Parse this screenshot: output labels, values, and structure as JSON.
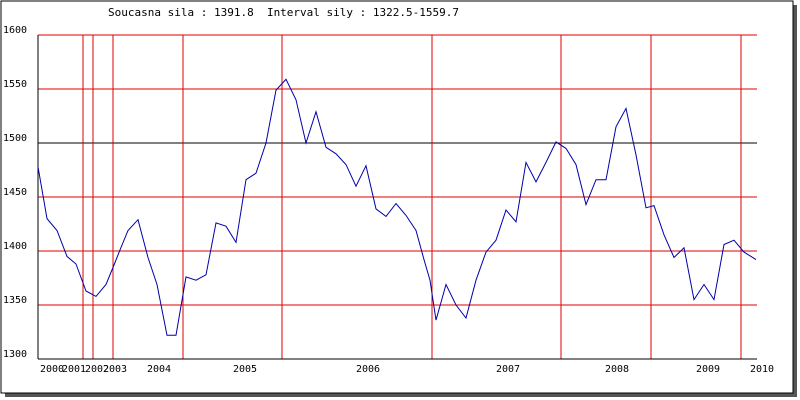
{
  "chart_data": {
    "type": "line",
    "title": "Soucasna sila : 1391.8  Interval sily : 1322.5-1559.7",
    "x": [
      0,
      0.9,
      1.9,
      2.9,
      3.8,
      4.8,
      5.8,
      6.8,
      7.6,
      8.2,
      9,
      10,
      11,
      11.9,
      12.9,
      13.8,
      14.8,
      15.8,
      16.8,
      17.8,
      18.8,
      19.8,
      20.8,
      21.8,
      22.8,
      23.8,
      24.8,
      25.8,
      26.8,
      27.8,
      28.8,
      29.8,
      30.8,
      31.8,
      32.8,
      33.8,
      34.8,
      35.8,
      36.8,
      37.8,
      38.6,
      39.2,
      39.8,
      40.8,
      41.8,
      42.8,
      43.8,
      44.8,
      45.8,
      46.8,
      47.8,
      48.8,
      49.8,
      50.8,
      51.8,
      52.8,
      53.8,
      54.8,
      55.8,
      56.8,
      57.8,
      58.8,
      59.8,
      60.8,
      61.6,
      62.6,
      63.6,
      64.6,
      65.6,
      66.6,
      67.6,
      68.6,
      69.6,
      70.6,
      71.8
    ],
    "series": [
      {
        "color": "#0000aa",
        "values": [
          1478,
          1430,
          1419,
          1395,
          1388,
          1363,
          1358,
          1369,
          1387,
          1401,
          1419,
          1429,
          1394,
          1369,
          1322,
          1322,
          1376,
          1373,
          1378,
          1426,
          1423,
          1408,
          1466,
          1472,
          1500,
          1549,
          1559,
          1540,
          1500,
          1529,
          1496,
          1490,
          1480,
          1460,
          1479,
          1439,
          1432,
          1444,
          1433,
          1419,
          1392,
          1373,
          1336,
          1369,
          1350,
          1338,
          1373,
          1399,
          1410,
          1438,
          1427,
          1482,
          1464,
          1482,
          1501,
          1495,
          1480,
          1443,
          1466,
          1466,
          1515,
          1532,
          1489,
          1440,
          1442,
          1415,
          1394,
          1403,
          1355,
          1369,
          1355,
          1406,
          1410,
          1399,
          1392
        ]
      }
    ],
    "xlim": [
      0,
      71.9
    ],
    "xticks": [
      {
        "value": 1.4,
        "label": "2000"
      },
      {
        "value": 3.6,
        "label": "2001"
      },
      {
        "value": 5.9,
        "label": "2002"
      },
      {
        "value": 7.7,
        "label": "2003"
      },
      {
        "value": 12.1,
        "label": "2004"
      },
      {
        "value": 20.7,
        "label": "2005"
      },
      {
        "value": 33,
        "label": "2006"
      },
      {
        "value": 47,
        "label": "2007"
      },
      {
        "value": 57.9,
        "label": "2008"
      },
      {
        "value": 67,
        "label": "2009"
      },
      {
        "value": 72.4,
        "label": "2010"
      }
    ],
    "xgrid": [
      4.5,
      5.5,
      7.5,
      14.5,
      24.4,
      39.4,
      52.3,
      61.3,
      70.3
    ],
    "grid_color": "#dd0000",
    "reference_line": 1500,
    "ylim": [
      1300,
      1600
    ],
    "yticks": [
      1300,
      1350,
      1400,
      1450,
      1500,
      1550,
      1600
    ]
  }
}
